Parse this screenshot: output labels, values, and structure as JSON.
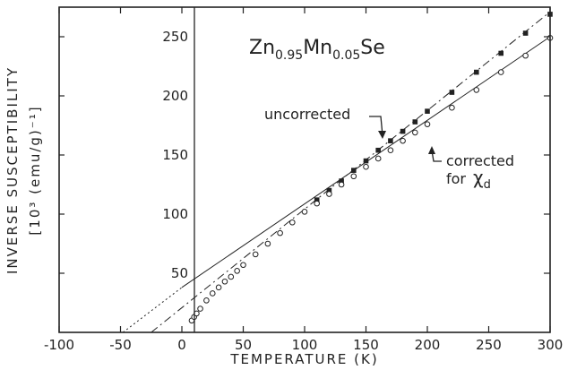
{
  "chart_data": {
    "type": "scatter",
    "title": "",
    "formula": {
      "base1": "Zn",
      "sub1": "0.95",
      "base2": "Mn",
      "sub2": "0.05",
      "base3": "Se"
    },
    "xlabel": "TEMPERATURE (K)",
    "ylabel_line1": "INVERSE SUSCEPTIBILITY",
    "ylabel_line2": "[10³ (emu/g)⁻¹]",
    "xlim": [
      -100,
      300
    ],
    "ylim": [
      0,
      275
    ],
    "xticks": [
      -100,
      -50,
      0,
      50,
      100,
      150,
      200,
      250,
      300
    ],
    "yticks": [
      50,
      100,
      150,
      200,
      250
    ],
    "annotations": {
      "uncorrected": "uncorrected",
      "corrected_line1": "corrected",
      "corrected_line2_prefix": "for",
      "corrected_symbol": "χ",
      "corrected_sub": "d"
    },
    "series": [
      {
        "marker": "filled-square",
        "x": [
          110,
          120,
          130,
          140,
          150,
          160,
          170,
          180,
          190,
          200,
          220,
          240,
          260,
          280,
          300
        ],
        "y": [
          112,
          120,
          128,
          137,
          145,
          154,
          162,
          170,
          178,
          187,
          203,
          220,
          236,
          253,
          269
        ]
      },
      {
        "marker": "open-circle",
        "x": [
          8,
          10,
          12,
          15,
          20,
          25,
          30,
          35,
          40,
          45,
          50,
          60,
          70,
          80,
          90,
          100,
          110,
          120,
          130,
          140,
          150,
          160,
          170,
          180,
          190,
          200,
          220,
          240,
          260,
          280,
          300
        ],
        "y": [
          10,
          13,
          16,
          20,
          27,
          33,
          38,
          43,
          47,
          52,
          57,
          66,
          75,
          84,
          93,
          102,
          109,
          117,
          125,
          132,
          140,
          147,
          154,
          162,
          169,
          176,
          190,
          205,
          220,
          234,
          249
        ]
      }
    ],
    "fit_lines": [
      {
        "style": "dash-dot",
        "x": [
          -25,
          300
        ],
        "y": [
          0,
          271
        ]
      },
      {
        "style": "solid",
        "x": [
          0,
          300
        ],
        "y": [
          38,
          250
        ]
      },
      {
        "style": "dotted",
        "x": [
          -48,
          0
        ],
        "y": [
          0,
          38
        ]
      }
    ]
  }
}
